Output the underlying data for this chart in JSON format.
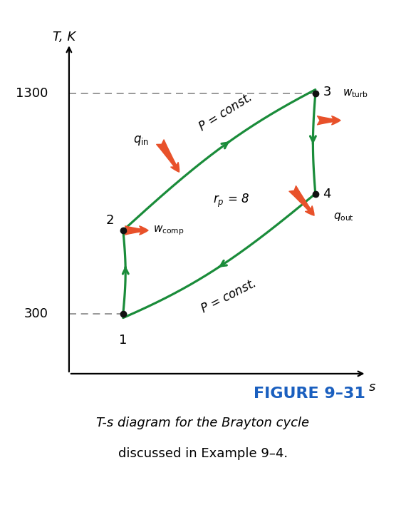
{
  "title": "FIGURE 9–31",
  "subtitle_line1": "T-s diagram for the Brayton cycle",
  "subtitle_line2": "discussed in Example 9–4.",
  "ylabel": "T, K",
  "xlabel": "s",
  "background_color": "#ffffff",
  "green_color": "#1a8c3a",
  "point_color": "#111111",
  "dashed_color": "#888888",
  "red_arrow_color": "#e8512a",
  "points": {
    "1": [
      0.18,
      0.18
    ],
    "2": [
      0.18,
      0.43
    ],
    "3": [
      0.82,
      0.84
    ],
    "4": [
      0.82,
      0.54
    ]
  },
  "ylim": [
    0.0,
    1.0
  ],
  "xlim": [
    0.0,
    1.0
  ],
  "point_size": 6,
  "lw": 2.3,
  "label_fontsize": 13,
  "tick_fontsize": 13,
  "annot_fontsize": 12,
  "title_fontsize": 16,
  "subtitle_fontsize": 13,
  "fig_width": 5.7,
  "fig_height": 7.08,
  "dpi": 100
}
